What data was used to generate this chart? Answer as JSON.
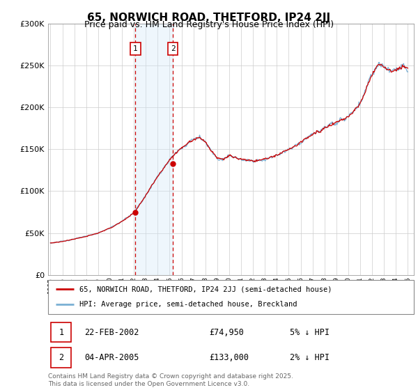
{
  "title": "65, NORWICH ROAD, THETFORD, IP24 2JJ",
  "subtitle": "Price paid vs. HM Land Registry's House Price Index (HPI)",
  "ylim": [
    0,
    300000
  ],
  "yticks": [
    0,
    50000,
    100000,
    150000,
    200000,
    250000,
    300000
  ],
  "ytick_labels": [
    "£0",
    "£50K",
    "£100K",
    "£150K",
    "£200K",
    "£250K",
    "£300K"
  ],
  "x_start_year": 1995,
  "x_end_year": 2025,
  "sale1_year": 2002.13,
  "sale1_price": 74950,
  "sale2_year": 2005.27,
  "sale2_price": 133000,
  "legend_line1": "65, NORWICH ROAD, THETFORD, IP24 2JJ (semi-detached house)",
  "legend_line2": "HPI: Average price, semi-detached house, Breckland",
  "red_color": "#cc0000",
  "blue_color": "#7ab0d4",
  "shade_color": "#d0e8f8",
  "title_fontsize": 11,
  "subtitle_fontsize": 9,
  "footnote": "Contains HM Land Registry data © Crown copyright and database right 2025.\nThis data is licensed under the Open Government Licence v3.0.",
  "table_row1_label": "1",
  "table_row1_date": "22-FEB-2002",
  "table_row1_price": "£74,950",
  "table_row1_hpi": "5% ↓ HPI",
  "table_row2_label": "2",
  "table_row2_date": "04-APR-2005",
  "table_row2_price": "£133,000",
  "table_row2_hpi": "2% ↓ HPI",
  "hpi_waypoints": [
    [
      1995.0,
      38000
    ],
    [
      1996.0,
      40000
    ],
    [
      1997.0,
      43000
    ],
    [
      1998.0,
      46000
    ],
    [
      1999.0,
      50000
    ],
    [
      2000.0,
      56000
    ],
    [
      2001.0,
      64000
    ],
    [
      2002.0,
      74000
    ],
    [
      2003.0,
      95000
    ],
    [
      2004.0,
      118000
    ],
    [
      2005.0,
      138000
    ],
    [
      2006.0,
      152000
    ],
    [
      2007.0,
      162000
    ],
    [
      2007.5,
      165000
    ],
    [
      2008.0,
      158000
    ],
    [
      2008.5,
      148000
    ],
    [
      2009.0,
      140000
    ],
    [
      2009.5,
      138000
    ],
    [
      2010.0,
      142000
    ],
    [
      2011.0,
      138000
    ],
    [
      2012.0,
      136000
    ],
    [
      2013.0,
      138000
    ],
    [
      2014.0,
      143000
    ],
    [
      2015.0,
      150000
    ],
    [
      2016.0,
      158000
    ],
    [
      2017.0,
      168000
    ],
    [
      2018.0,
      175000
    ],
    [
      2019.0,
      182000
    ],
    [
      2020.0,
      188000
    ],
    [
      2021.0,
      205000
    ],
    [
      2022.0,
      240000
    ],
    [
      2022.5,
      252000
    ],
    [
      2023.0,
      248000
    ],
    [
      2023.5,
      242000
    ],
    [
      2024.0,
      245000
    ],
    [
      2024.5,
      248000
    ],
    [
      2025.0,
      245000
    ]
  ]
}
